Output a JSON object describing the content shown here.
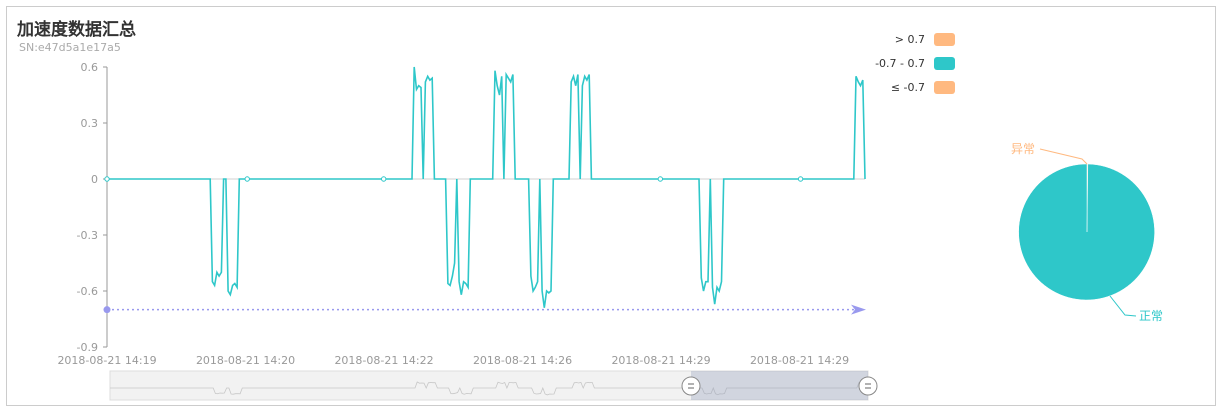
{
  "header": {
    "title": "加速度数据汇总",
    "subtitle": "SN:e47d5a1e17a5"
  },
  "colors": {
    "line": "#2ec7c9",
    "high": "#ffb980",
    "low": "#ffb980",
    "normal": "#2ec7c9",
    "markline": "#9999ee",
    "axis": "#999999"
  },
  "legend": [
    {
      "label": "> 0.7",
      "color": "#ffb980"
    },
    {
      "label": "-0.7 - 0.7",
      "color": "#2ec7c9"
    },
    {
      "label": "≤ -0.7",
      "color": "#ffb980"
    }
  ],
  "chart_data": [
    {
      "type": "line",
      "ylim": [
        -0.9,
        0.6
      ],
      "yticks": [
        "0.6",
        "0.3",
        "0",
        "-0.3",
        "-0.6",
        "-0.9"
      ],
      "ytick_values": [
        0.6,
        0.3,
        0,
        -0.3,
        -0.6,
        -0.9
      ],
      "xticks": [
        "2018-08-21  14:19",
        "2018-08-21  14:20",
        "2018-08-21  14:22",
        "2018-08-21  14:26",
        "2018-08-21  14:29",
        "2018-08-21  14:29"
      ],
      "markline_value": -0.7,
      "series": [
        {
          "values": [
            0,
            0,
            0,
            0,
            0,
            0,
            0,
            0,
            0,
            0,
            0,
            0,
            0,
            0,
            0,
            0,
            0,
            0,
            0,
            0,
            0,
            0,
            0,
            0,
            0,
            0,
            0,
            0,
            0,
            0,
            0,
            0,
            0,
            0,
            0,
            0,
            0,
            0,
            0,
            0,
            0,
            0,
            0,
            0,
            0,
            0,
            0,
            -0.55,
            -0.57,
            -0.5,
            -0.52,
            -0.5,
            0,
            0,
            -0.6,
            -0.62,
            -0.57,
            -0.56,
            -0.58,
            0,
            0,
            0,
            0,
            0,
            0,
            0,
            0,
            0,
            0,
            0,
            0,
            0,
            0,
            0,
            0,
            0,
            0,
            0,
            0,
            0,
            0,
            0,
            0,
            0,
            0,
            0,
            0,
            0,
            0,
            0,
            0,
            0,
            0,
            0,
            0,
            0,
            0,
            0,
            0,
            0,
            0,
            0,
            0,
            0,
            0,
            0,
            0,
            0,
            0,
            0,
            0,
            0,
            0,
            0,
            0,
            0,
            0,
            0,
            0,
            0,
            0,
            0,
            0,
            0,
            0,
            0,
            0,
            0,
            0,
            0,
            0,
            0,
            0,
            0,
            0,
            0,
            0,
            0.6,
            0.48,
            0.5,
            0.49,
            0,
            0.52,
            0.55,
            0.53,
            0.54,
            0,
            0,
            0,
            0,
            0,
            0,
            -0.56,
            -0.57,
            -0.52,
            -0.45,
            0,
            -0.55,
            -0.62,
            -0.55,
            -0.56,
            -0.58,
            0,
            0,
            0,
            0,
            0,
            0,
            0,
            0,
            0,
            0,
            0,
            0.58,
            0.5,
            0.45,
            0.55,
            0,
            0.56,
            0.54,
            0.52,
            0.56,
            0,
            0,
            0,
            0,
            0,
            0,
            0,
            -0.52,
            -0.6,
            -0.58,
            -0.55,
            0,
            -0.6,
            -0.69,
            -0.6,
            -0.61,
            -0.6,
            0,
            0,
            0,
            0,
            0,
            0,
            0,
            0,
            0.52,
            0.55,
            0.5,
            0.56,
            0,
            0.5,
            0.55,
            0.53,
            0.56,
            0,
            0,
            0,
            0,
            0,
            0,
            0,
            0,
            0,
            0,
            0,
            0,
            0,
            0,
            0,
            0,
            0,
            0,
            0,
            0,
            0,
            0,
            0,
            0,
            0,
            0,
            0,
            0,
            0,
            0,
            0,
            0,
            0,
            0,
            0,
            0,
            0,
            0,
            0,
            0,
            0,
            0,
            0,
            0,
            0,
            0,
            0,
            0,
            0,
            -0.53,
            -0.6,
            -0.55,
            -0.55,
            0,
            -0.58,
            -0.67,
            -0.58,
            -0.6,
            -0.55,
            0,
            0,
            0,
            0,
            0,
            0,
            0,
            0,
            0,
            0,
            0,
            0,
            0,
            0,
            0,
            0,
            0,
            0,
            0,
            0,
            0,
            0,
            0,
            0,
            0,
            0,
            0,
            0,
            0,
            0,
            0,
            0,
            0,
            0,
            0,
            0,
            0,
            0,
            0,
            0,
            0,
            0,
            0,
            0,
            0,
            0,
            0,
            0,
            0,
            0,
            0,
            0,
            0,
            0,
            0,
            0,
            0,
            0,
            0,
            0.55,
            0.52,
            0.5,
            0.53,
            0
          ]
        }
      ]
    },
    {
      "type": "pie",
      "categories": [
        "异常",
        "正常"
      ],
      "values": [
        0.2,
        99.8
      ],
      "colors": [
        "#ffb980",
        "#2ec7c9"
      ]
    }
  ]
}
